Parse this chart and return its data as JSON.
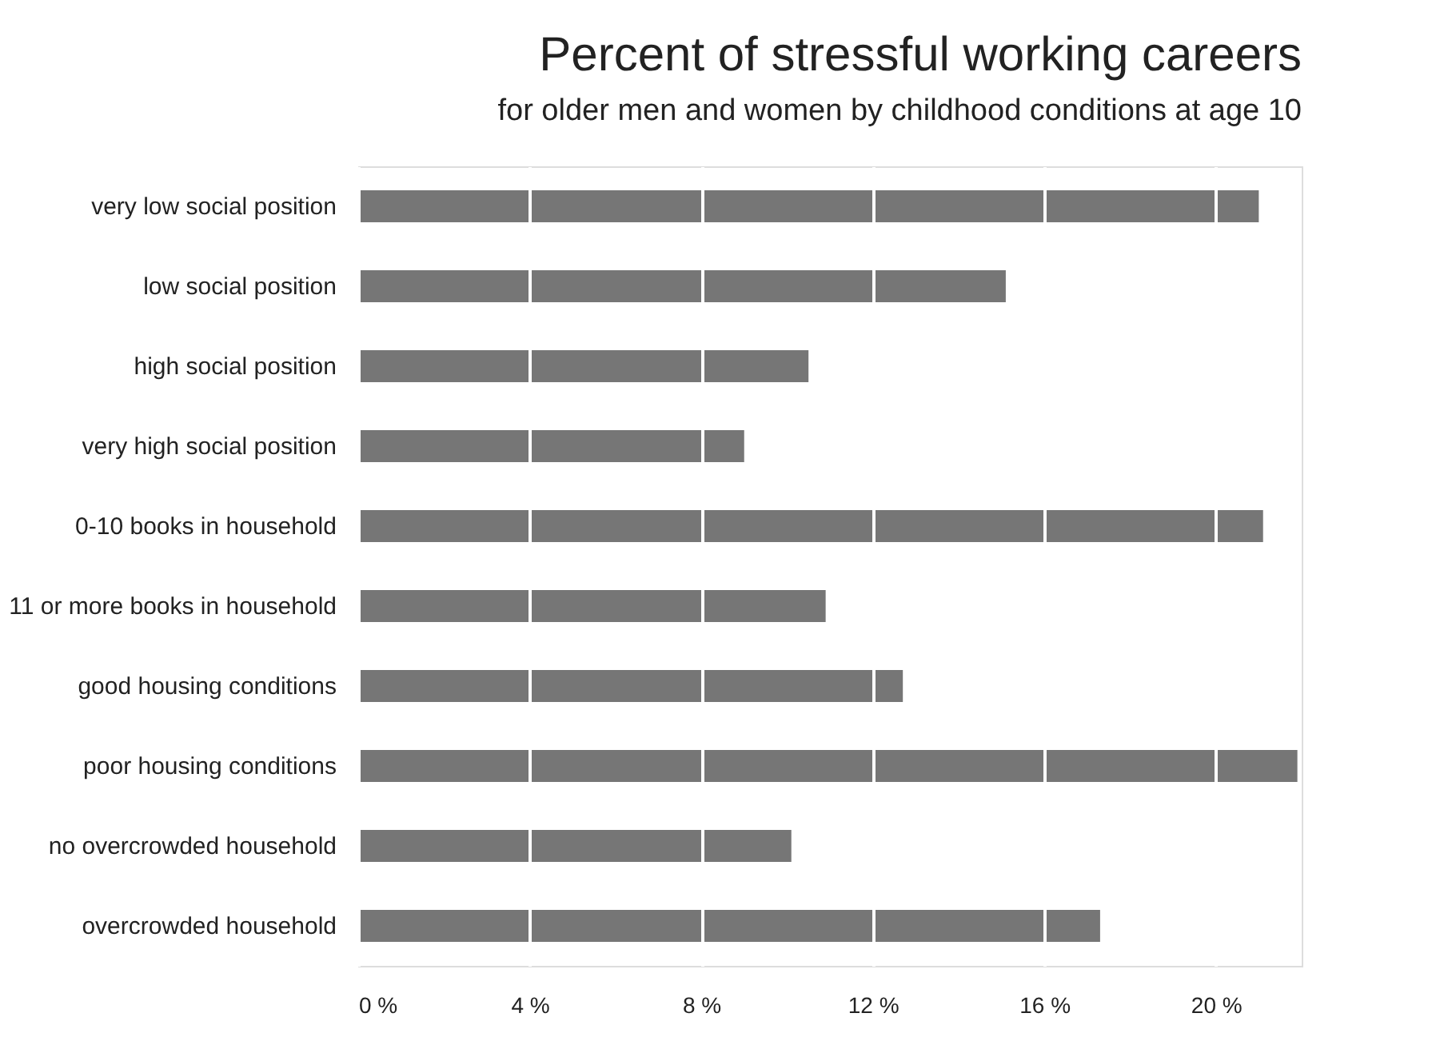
{
  "chart_data": {
    "type": "bar",
    "orientation": "horizontal",
    "title": "Percent of stressful working careers",
    "subtitle": "for older men and women by childhood conditions at age 10",
    "categories": [
      "very low social position",
      "low social position",
      "high social position",
      "very high social position",
      "0-10 books in household",
      "11 or more books in household",
      "good housing conditions",
      "poor housing conditions",
      "no overcrowded household",
      "overcrowded household"
    ],
    "values": [
      21.0,
      15.1,
      10.5,
      9.0,
      21.1,
      10.9,
      12.7,
      21.9,
      10.1,
      17.3
    ],
    "color": "#767676",
    "xlim": [
      0,
      22
    ],
    "xticks": [
      {
        "value": 0,
        "label": "0 %"
      },
      {
        "value": 4,
        "label": "4 %"
      },
      {
        "value": 8,
        "label": "8 %"
      },
      {
        "value": 12,
        "label": "12 %"
      },
      {
        "value": 16,
        "label": "16 %"
      },
      {
        "value": 20,
        "label": "20 %"
      }
    ],
    "grid": "x"
  }
}
